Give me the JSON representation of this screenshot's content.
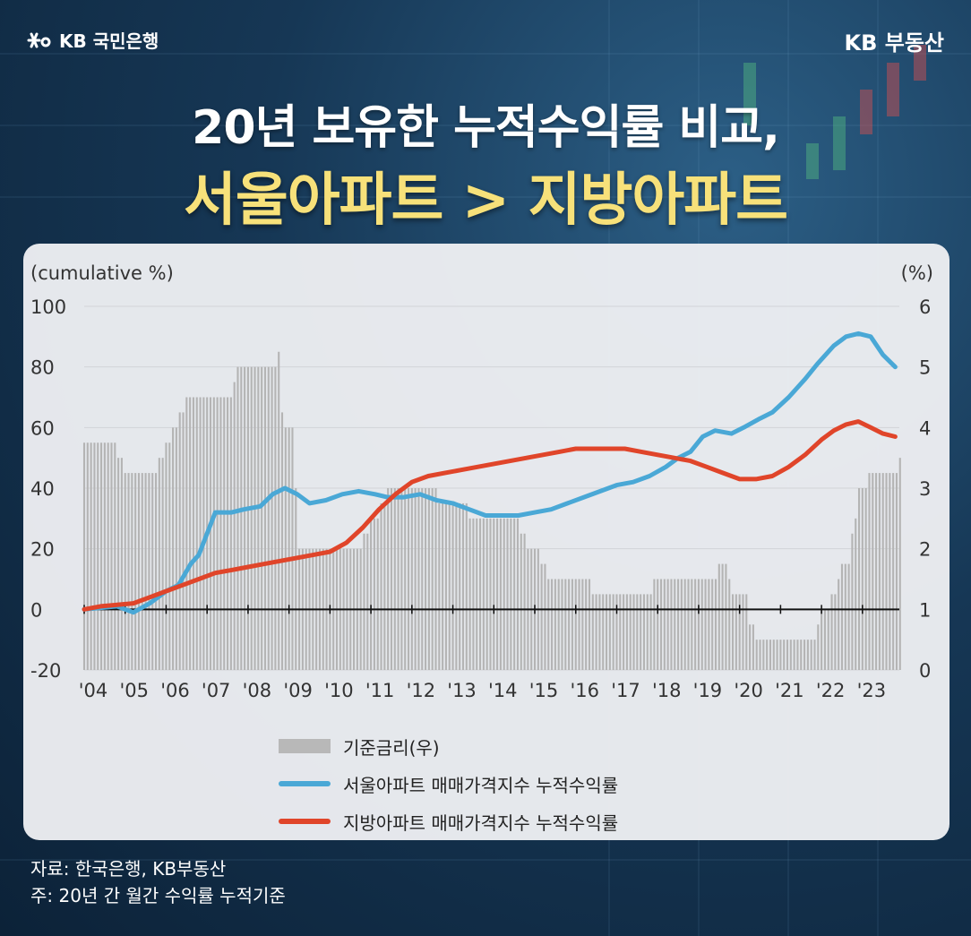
{
  "header": {
    "logo_left": "KB 국민은행",
    "logo_right": "KB 부동산"
  },
  "title": {
    "line1": "20년 보유한 누적수익률 비교,",
    "line2": "서울아파트 > 지방아파트"
  },
  "chart_data": {
    "type": "line",
    "ylabel_left": "(cumulative %)",
    "ylabel_right": "(%)",
    "ylim_left": [
      -20,
      100
    ],
    "ylim_right": [
      0,
      6
    ],
    "yticks_left": [
      100,
      80,
      60,
      40,
      20,
      0,
      -20
    ],
    "yticks_right": [
      6,
      5,
      4,
      3,
      2,
      1,
      0
    ],
    "x_tick_labels": [
      "'04",
      "'05",
      "'06",
      "'07",
      "'08",
      "'09",
      "'10",
      "'11",
      "'12",
      "'13",
      "'14",
      "'15",
      "'16",
      "'17",
      "'18",
      "'19",
      "'20",
      "'21",
      "'22",
      "'23"
    ],
    "grid": true,
    "series": [
      {
        "name": "기준금리(우)",
        "type": "bar",
        "axis": "right",
        "color": "#b4b4b4",
        "x": [
          2004.0,
          2004.6,
          2004.8,
          2005.0,
          2005.7,
          2005.8,
          2006.0,
          2006.1,
          2006.3,
          2006.5,
          2006.6,
          2007.1,
          2007.6,
          2007.7,
          2008.0,
          2008.2,
          2008.4,
          2008.7,
          2008.8,
          2008.9,
          2009.1,
          2009.2,
          2010.6,
          2010.8,
          2011.0,
          2011.2,
          2011.4,
          2012.4,
          2012.6,
          2012.8,
          2013.4,
          2014.6,
          2014.8,
          2015.1,
          2015.3,
          2015.5,
          2016.4,
          2017.9,
          2019.5,
          2019.7,
          2019.8,
          2020.2,
          2020.4,
          2021.6,
          2021.9,
          2022.0,
          2022.2,
          2022.4,
          2022.5,
          2022.7,
          2022.8,
          2022.9,
          2023.1,
          2023.9
        ],
        "values": [
          3.75,
          3.75,
          3.5,
          3.25,
          3.25,
          3.5,
          3.75,
          4.0,
          4.25,
          4.5,
          4.5,
          4.5,
          4.75,
          5.0,
          5.0,
          5.0,
          5.0,
          5.25,
          4.25,
          4.0,
          3.0,
          2.0,
          2.0,
          2.25,
          2.5,
          2.75,
          3.0,
          3.0,
          2.75,
          2.75,
          2.5,
          2.25,
          2.0,
          1.75,
          1.5,
          1.5,
          1.25,
          1.5,
          1.75,
          1.5,
          1.25,
          0.75,
          0.5,
          0.5,
          0.75,
          1.0,
          1.25,
          1.5,
          1.75,
          2.25,
          2.5,
          3.0,
          3.25,
          3.5
        ]
      },
      {
        "name": "서울아파트 매매가격지수 누적수익률",
        "type": "line",
        "axis": "left",
        "color": "#4aa8d6",
        "x": [
          2004.0,
          2004.4,
          2004.8,
          2005.2,
          2005.6,
          2006.0,
          2006.3,
          2006.6,
          2006.8,
          2007.2,
          2007.6,
          2007.9,
          2008.3,
          2008.6,
          2008.9,
          2009.2,
          2009.5,
          2009.9,
          2010.3,
          2010.7,
          2011.1,
          2011.4,
          2011.8,
          2012.2,
          2012.6,
          2013.0,
          2013.4,
          2013.8,
          2014.2,
          2014.6,
          2015.0,
          2015.4,
          2015.8,
          2016.2,
          2016.6,
          2017.0,
          2017.4,
          2017.8,
          2018.2,
          2018.5,
          2018.8,
          2019.1,
          2019.4,
          2019.8,
          2020.1,
          2020.5,
          2020.8,
          2021.2,
          2021.6,
          2021.9,
          2022.3,
          2022.6,
          2022.9,
          2023.2,
          2023.5,
          2023.8
        ],
        "values": [
          0,
          0.5,
          1,
          -1,
          2,
          6,
          8,
          15,
          18,
          32,
          32,
          33,
          34,
          38,
          40,
          38,
          35,
          36,
          38,
          39,
          38,
          37,
          37,
          38,
          36,
          35,
          33,
          31,
          31,
          31,
          32,
          33,
          35,
          37,
          39,
          41,
          42,
          44,
          47,
          50,
          52,
          57,
          59,
          58,
          60,
          63,
          65,
          70,
          76,
          81,
          87,
          90,
          91,
          90,
          84,
          80
        ]
      },
      {
        "name": "지방아파트 매매가격지수 누적수익률",
        "type": "line",
        "axis": "left",
        "color": "#e0452a",
        "x": [
          2004.0,
          2004.4,
          2004.8,
          2005.2,
          2005.6,
          2006.0,
          2006.4,
          2006.8,
          2007.2,
          2007.6,
          2008.0,
          2008.4,
          2008.8,
          2009.2,
          2009.6,
          2010.0,
          2010.4,
          2010.8,
          2011.2,
          2011.6,
          2012.0,
          2012.4,
          2012.8,
          2013.2,
          2013.6,
          2014.0,
          2014.4,
          2014.8,
          2015.2,
          2015.6,
          2016.0,
          2016.4,
          2016.8,
          2017.2,
          2017.6,
          2018.0,
          2018.4,
          2018.8,
          2019.2,
          2019.6,
          2020.0,
          2020.4,
          2020.8,
          2021.2,
          2021.6,
          2022.0,
          2022.3,
          2022.6,
          2022.9,
          2023.2,
          2023.5,
          2023.8
        ],
        "values": [
          0,
          1,
          1.5,
          2,
          4,
          6,
          8,
          10,
          12,
          13,
          14,
          15,
          16,
          17,
          18,
          19,
          22,
          27,
          33,
          38,
          42,
          44,
          45,
          46,
          47,
          48,
          49,
          50,
          51,
          52,
          53,
          53,
          53,
          53,
          52,
          51,
          50,
          49,
          47,
          45,
          43,
          43,
          44,
          47,
          51,
          56,
          59,
          61,
          62,
          60,
          58,
          57
        ]
      }
    ],
    "legend": [
      {
        "label": "기준금리(우)",
        "style": "bar",
        "color": "#b4b4b4"
      },
      {
        "label": "서울아파트 매매가격지수 누적수익률",
        "style": "line",
        "color": "#4aa8d6"
      },
      {
        "label": "지방아파트 매매가격지수 누적수익률",
        "style": "line",
        "color": "#e0452a"
      }
    ]
  },
  "footer": {
    "source": "자료: 한국은행, KB부동산",
    "note": "주: 20년 간 월간 수익률 누적기준"
  }
}
